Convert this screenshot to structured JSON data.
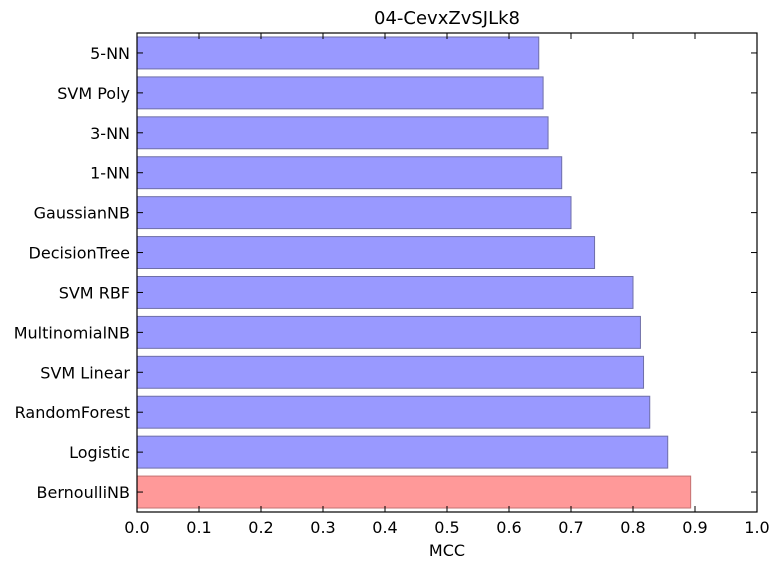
{
  "chart_data": {
    "type": "bar",
    "orientation": "horizontal",
    "title": "04-CevxZvSJLk8",
    "xlabel": "MCC",
    "ylabel": "",
    "xlim": [
      0.0,
      1.0
    ],
    "xticks": [
      "0.0",
      "0.1",
      "0.2",
      "0.3",
      "0.4",
      "0.5",
      "0.6",
      "0.7",
      "0.8",
      "0.9",
      "1.0"
    ],
    "grid": false,
    "categories": [
      "5-NN",
      "SVM Poly",
      "3-NN",
      "1-NN",
      "GaussianNB",
      "DecisionTree",
      "SVM RBF",
      "MultinomialNB",
      "SVM Linear",
      "RandomForest",
      "Logistic",
      "BernoulliNB"
    ],
    "values": [
      0.648,
      0.655,
      0.663,
      0.685,
      0.7,
      0.738,
      0.8,
      0.812,
      0.817,
      0.827,
      0.856,
      0.893
    ],
    "highlight": "BernoulliNB",
    "colors": {
      "bar": "#9999ff",
      "bar_edge": "#6f6fa8",
      "highlight": "#ff9999",
      "highlight_edge": "#c47272",
      "axis": "#000000"
    }
  }
}
